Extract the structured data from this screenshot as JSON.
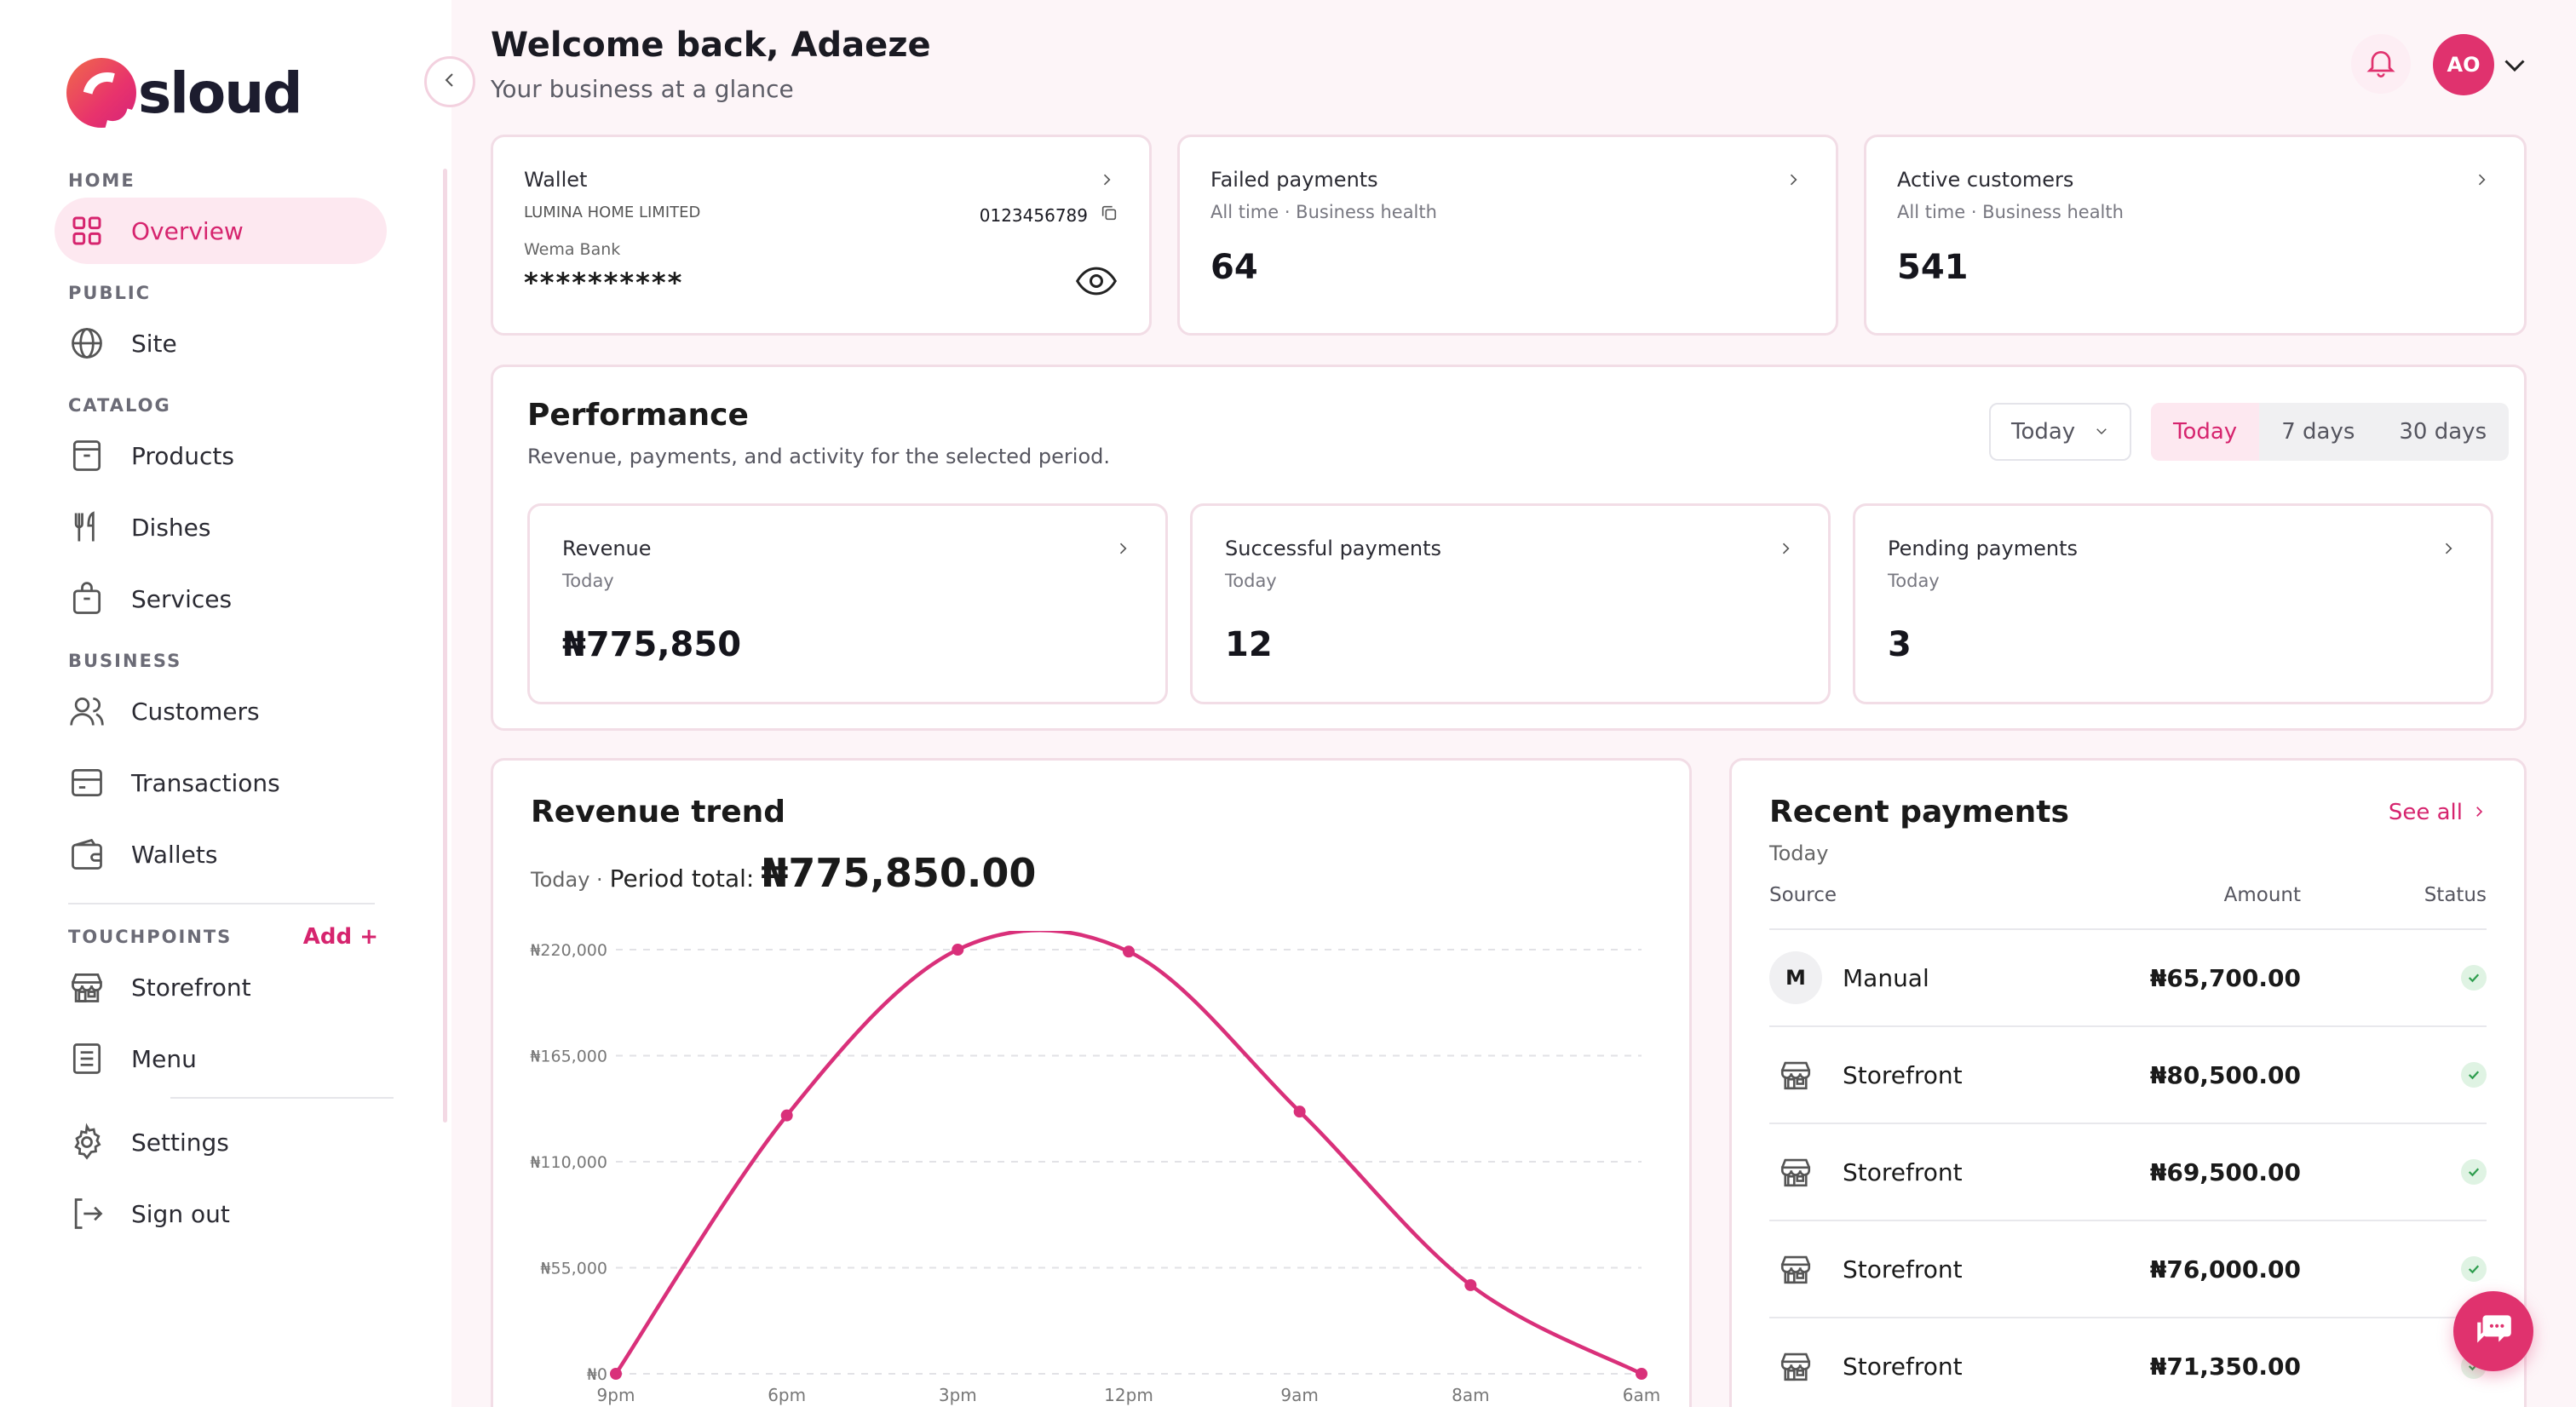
{
  "brand": {
    "name": "sloud",
    "accent": "#e0326e"
  },
  "sidebar": {
    "sections": {
      "home": "HOME",
      "public": "PUBLIC",
      "catalog": "CATALOG",
      "business": "BUSINESS",
      "touchpoints": "TOUCHPOINTS"
    },
    "items": {
      "overview": "Overview",
      "site": "Site",
      "products": "Products",
      "dishes": "Dishes",
      "services": "Services",
      "customers": "Customers",
      "transactions": "Transactions",
      "wallets": "Wallets",
      "storefront": "Storefront",
      "menu": "Menu",
      "settings": "Settings",
      "signout": "Sign out"
    },
    "touchpoints_add": "Add"
  },
  "header": {
    "title": "Welcome back, Adaeze",
    "subtitle": "Your business at a glance",
    "avatar_initials": "AO"
  },
  "wallet": {
    "title": "Wallet",
    "account_name": "LUMINA HOME LIMITED",
    "account_number": "0123456789",
    "bank": "Wema Bank",
    "balance_masked": "**********"
  },
  "failed_payments": {
    "title": "Failed payments",
    "meta": "All time · Business health",
    "value": "64"
  },
  "active_customers": {
    "title": "Active customers",
    "meta": "All time · Business health",
    "value": "541"
  },
  "performance": {
    "title": "Performance",
    "subtitle": "Revenue, payments, and activity for the selected period.",
    "select_value": "Today",
    "ranges": [
      "Today",
      "7 days",
      "30 days"
    ],
    "active_range": 0,
    "cards": [
      {
        "title": "Revenue",
        "meta": "Today",
        "value": "₦775,850"
      },
      {
        "title": "Successful payments",
        "meta": "Today",
        "value": "12"
      },
      {
        "title": "Pending payments",
        "meta": "Today",
        "value": "3"
      }
    ]
  },
  "revenue_trend": {
    "title": "Revenue trend",
    "period_label": "Today ·",
    "period_total_label": "Period total:",
    "period_total": "₦775,850.00"
  },
  "chart_data": {
    "type": "line",
    "categories": [
      "9pm",
      "6pm",
      "3pm",
      "12pm",
      "9am",
      "8am",
      "6am"
    ],
    "series": [
      {
        "values": [
          0,
          134000,
          220000,
          219000,
          136000,
          46000,
          0
        ]
      }
    ],
    "ylim": [
      0,
      220000
    ],
    "yticks": [
      0,
      55000,
      110000,
      165000,
      220000
    ],
    "ytick_labels": [
      "₦0",
      "₦55,000",
      "₦110,000",
      "₦165,000",
      "₦220,000"
    ],
    "grid": true,
    "color": "#d9307a"
  },
  "recent_payments": {
    "title": "Recent payments",
    "subtitle": "Today",
    "see_all": "See all",
    "columns": {
      "source": "Source",
      "amount": "Amount",
      "status": "Status"
    },
    "rows": [
      {
        "source": "Manual",
        "icon": "M",
        "amount": "₦65,700.00"
      },
      {
        "source": "Storefront",
        "icon": "storefront-icon",
        "amount": "₦80,500.00"
      },
      {
        "source": "Storefront",
        "icon": "storefront-icon",
        "amount": "₦69,500.00"
      },
      {
        "source": "Storefront",
        "icon": "storefront-icon",
        "amount": "₦76,000.00"
      },
      {
        "source": "Storefront",
        "icon": "storefront-icon",
        "amount": "₦71,350.00"
      }
    ]
  }
}
